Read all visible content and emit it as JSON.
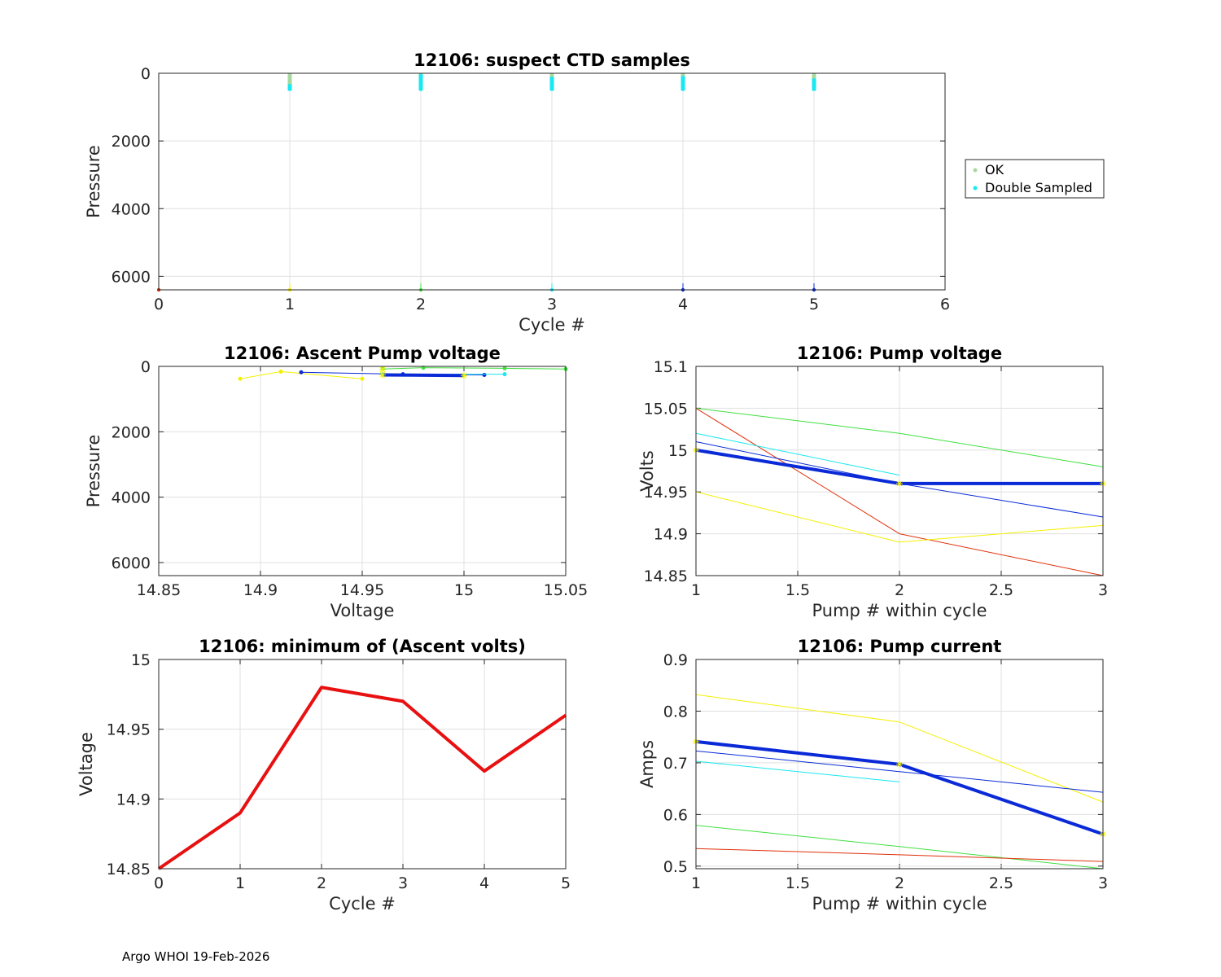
{
  "footer": "Argo WHOI 19-Feb-2026",
  "chart_data": [
    {
      "id": "ctd",
      "type": "scatter",
      "title": "12106: suspect CTD samples",
      "xlabel": "Cycle #",
      "ylabel": "Pressure",
      "xlim": [
        0,
        6
      ],
      "ylim": [
        0,
        6400
      ],
      "y_reversed": true,
      "xticks": [
        "0",
        "1",
        "2",
        "3",
        "4",
        "5",
        "6"
      ],
      "yticks": [
        "0",
        "2000",
        "4000",
        "6000"
      ],
      "grid": true,
      "legend": {
        "position": "outside-right",
        "entries": [
          "OK",
          "Double Sampled"
        ]
      },
      "series": [
        {
          "name": "OK",
          "color": "#a8d8a0",
          "x": [
            1,
            2,
            3,
            4,
            5
          ],
          "pmin": [
            0,
            0,
            0,
            0,
            0
          ],
          "pmax": [
            400,
            450,
            350,
            350,
            350
          ]
        },
        {
          "name": "Double Sampled",
          "color": "#19e8f0",
          "x": [
            1,
            2,
            3,
            4,
            5
          ],
          "pmin": [
            320,
            20,
            100,
            80,
            150
          ],
          "pmax": [
            520,
            520,
            520,
            520,
            520
          ]
        }
      ],
      "markers": [
        {
          "x": 0,
          "y": 6400,
          "color": "#e0300a"
        },
        {
          "x": 1,
          "y": 6400,
          "color": "#f5f000"
        },
        {
          "x": 2,
          "y": 6400,
          "color": "#40e040"
        },
        {
          "x": 3,
          "y": 6400,
          "color": "#19e8f0"
        },
        {
          "x": 4,
          "y": 6400,
          "color": "#0a2ad8"
        },
        {
          "x": 5,
          "y": 6400,
          "color": "#0a2ad8"
        }
      ]
    },
    {
      "id": "ascent",
      "type": "line",
      "title": "12106: Ascent Pump voltage",
      "xlabel": "Voltage",
      "ylabel": "Pressure",
      "xlim": [
        14.85,
        15.05
      ],
      "ylim": [
        0,
        6400
      ],
      "y_reversed": true,
      "xticks": [
        "14.85",
        "14.9",
        "14.95",
        "15",
        "15.05"
      ],
      "yticks": [
        "0",
        "2000",
        "4000",
        "6000"
      ],
      "grid": true,
      "series": [
        {
          "color": "#f5f000",
          "width": 1,
          "markers": "dots",
          "x": [
            14.89,
            14.91,
            14.95
          ],
          "y": [
            380,
            160,
            380
          ]
        },
        {
          "color": "#0a2ad8",
          "width": 1,
          "markers": "dots",
          "x": [
            14.92,
            14.97,
            15.01
          ],
          "y": [
            180,
            240,
            260
          ]
        },
        {
          "color": "#19e8f0",
          "width": 1,
          "markers": "dots",
          "x": [
            14.96,
            15.02
          ],
          "y": [
            240,
            240
          ]
        },
        {
          "color": "#40e040",
          "width": 1,
          "markers": "dots",
          "x": [
            14.96,
            14.98,
            15.02,
            15.05
          ],
          "y": [
            80,
            40,
            60,
            80
          ]
        },
        {
          "color": "#0a2ad8",
          "width": 4,
          "markers": "none",
          "x": [
            14.96,
            15.0
          ],
          "y": [
            260,
            280
          ]
        },
        {
          "color": "#f5f000",
          "width": 1,
          "markers": "stars",
          "x": [
            14.96,
            14.96,
            15.0
          ],
          "y": [
            100,
            260,
            280
          ]
        }
      ]
    },
    {
      "id": "pumpv",
      "type": "line",
      "title": "12106: Pump voltage",
      "xlabel": "Pump # within cycle",
      "ylabel": "Volts",
      "xlim": [
        1,
        3
      ],
      "ylim": [
        14.85,
        15.1
      ],
      "xticks": [
        "1",
        "1.5",
        "2",
        "2.5",
        "3"
      ],
      "yticks": [
        "14.85",
        "14.9",
        "14.95",
        "15",
        "15.05",
        "15.1"
      ],
      "grid": true,
      "series": [
        {
          "color": "#40e040",
          "width": 1,
          "x": [
            1,
            2,
            3
          ],
          "y": [
            15.05,
            15.02,
            14.98
          ]
        },
        {
          "color": "#e0300a",
          "width": 1,
          "x": [
            1,
            2,
            3
          ],
          "y": [
            15.05,
            14.9,
            14.85
          ]
        },
        {
          "color": "#19e8f0",
          "width": 1,
          "x": [
            1,
            2
          ],
          "y": [
            15.02,
            14.97
          ]
        },
        {
          "color": "#0a2ad8",
          "width": 1,
          "x": [
            1,
            2,
            3
          ],
          "y": [
            15.01,
            14.96,
            14.92
          ]
        },
        {
          "color": "#f5f000",
          "width": 1,
          "x": [
            1,
            2,
            3
          ],
          "y": [
            14.95,
            14.89,
            14.91
          ]
        },
        {
          "color": "#0a2ad8",
          "width": 4,
          "markers": "stars",
          "x": [
            1,
            2,
            3
          ],
          "y": [
            15.0,
            14.96,
            14.96
          ]
        }
      ]
    },
    {
      "id": "minv",
      "type": "line",
      "title": "12106: minimum of (Ascent volts)",
      "xlabel": "Cycle #",
      "ylabel": "Voltage",
      "xlim": [
        0,
        5
      ],
      "ylim": [
        14.85,
        15.0
      ],
      "xticks": [
        "0",
        "1",
        "2",
        "3",
        "4",
        "5"
      ],
      "yticks": [
        "14.85",
        "14.9",
        "14.95",
        "15"
      ],
      "grid": true,
      "series": [
        {
          "color": "#e81010",
          "width": 4,
          "x": [
            0,
            1,
            2,
            3,
            4,
            5
          ],
          "y": [
            14.85,
            14.89,
            14.98,
            14.97,
            14.92,
            14.96
          ]
        }
      ]
    },
    {
      "id": "pumpc",
      "type": "line",
      "title": "12106: Pump current",
      "xlabel": "Pump # within cycle",
      "ylabel": "Amps",
      "xlim": [
        1,
        3
      ],
      "ylim": [
        0.495,
        0.9
      ],
      "xticks": [
        "1",
        "1.5",
        "2",
        "2.5",
        "3"
      ],
      "yticks": [
        "0.5",
        "0.6",
        "0.7",
        "0.8",
        "0.9"
      ],
      "grid": true,
      "series": [
        {
          "color": "#f5f000",
          "width": 1,
          "x": [
            1,
            2,
            3
          ],
          "y": [
            0.832,
            0.779,
            0.624
          ]
        },
        {
          "color": "#0a2ad8",
          "width": 1,
          "x": [
            1,
            2,
            3
          ],
          "y": [
            0.723,
            0.683,
            0.643
          ]
        },
        {
          "color": "#19e8f0",
          "width": 1,
          "x": [
            1,
            2
          ],
          "y": [
            0.703,
            0.663
          ]
        },
        {
          "color": "#40e040",
          "width": 1,
          "x": [
            1,
            2,
            3
          ],
          "y": [
            0.579,
            0.538,
            0.495
          ]
        },
        {
          "color": "#e0300a",
          "width": 1,
          "x": [
            1,
            2,
            3
          ],
          "y": [
            0.534,
            0.522,
            0.509
          ]
        },
        {
          "color": "#0a2ad8",
          "width": 4,
          "markers": "stars",
          "x": [
            1,
            2,
            3
          ],
          "y": [
            0.741,
            0.697,
            0.562
          ]
        }
      ]
    }
  ]
}
